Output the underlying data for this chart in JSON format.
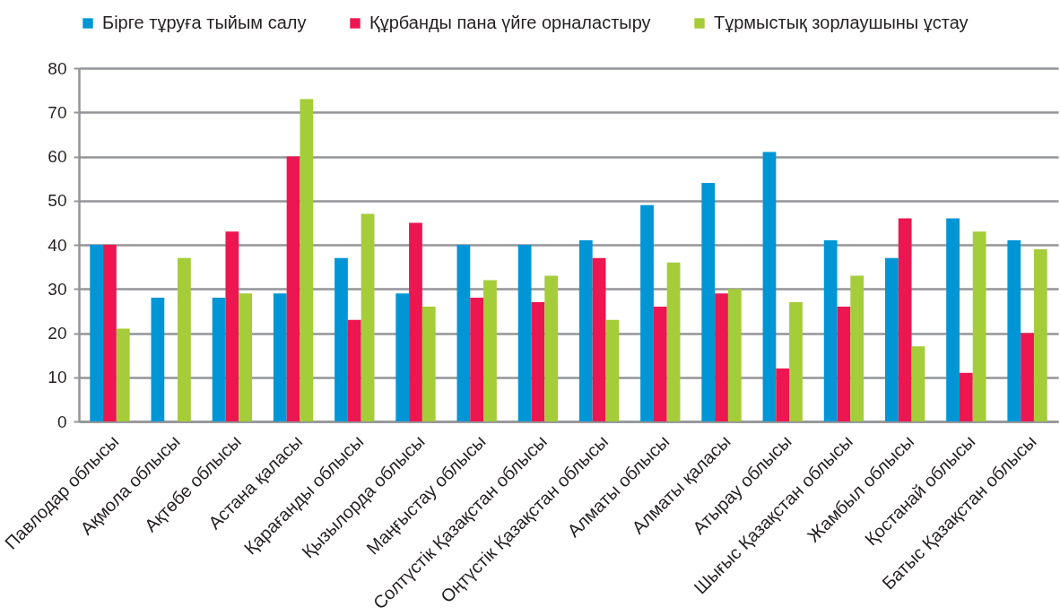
{
  "chart_data": {
    "type": "bar",
    "categories": [
      "Павлодар облысы",
      "Ақмола облысы",
      "Ақтөбе облысы",
      "Астана қаласы",
      "Қарағанды облысы",
      "Қызылорда облысы",
      "Маңғыстау облысы",
      "Солтүстік Қазақстан облысы",
      "Оңтүстік Қазақстан облысы",
      "Алматы облысы",
      "Алматы қаласы",
      "Атырау облысы",
      "Шығыс Қазақстан облысы",
      "Жамбыл облысы",
      "Қостанай облысы",
      "Батыс Қазақстан облысы"
    ],
    "series": [
      {
        "name": "Бірге тұруға тыйым салу",
        "color": "#0096d6",
        "values": [
          40,
          28,
          28,
          29,
          37,
          29,
          40,
          40,
          41,
          49,
          54,
          61,
          41,
          37,
          46,
          41
        ]
      },
      {
        "name": "Құрбанды пана үйге орналастыру",
        "color": "#ec1651",
        "values": [
          40,
          null,
          43,
          60,
          23,
          45,
          28,
          27,
          37,
          26,
          29,
          12,
          26,
          46,
          11,
          20
        ]
      },
      {
        "name": "Тұрмыстық зорлаушыны ұстау",
        "color": "#a5cc39",
        "values": [
          21,
          37,
          29,
          73,
          47,
          26,
          32,
          33,
          23,
          36,
          30,
          27,
          33,
          17,
          43,
          39
        ]
      }
    ],
    "ylim": [
      0,
      80
    ],
    "yticks": [
      0,
      10,
      20,
      30,
      40,
      50,
      60,
      70,
      80
    ],
    "grid": "y",
    "legend": "top"
  }
}
